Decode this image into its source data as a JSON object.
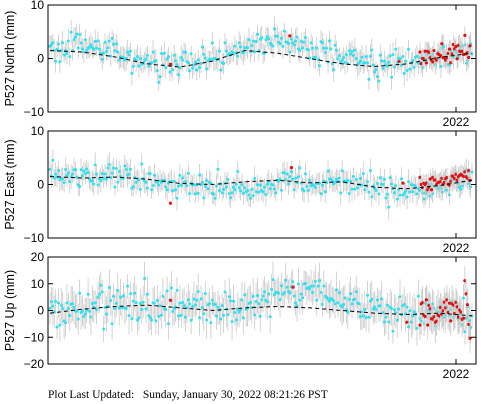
{
  "chart_data": [
    {
      "type": "scatter",
      "ylabel": "P527 North (mm)",
      "ylim": [
        -10,
        10
      ],
      "yticks": [
        "10",
        "0",
        "−10"
      ],
      "xtick_label": "2022",
      "series": [
        {
          "name": "",
          "role": "daily",
          "color": "#33e0f0",
          "trend": [
            2.0,
            2.2,
            1.5,
            -0.5,
            -1.5,
            -0.5,
            2.0,
            3.5,
            1.5,
            0.0,
            -1.0,
            -0.5,
            0.5,
            1.0
          ],
          "noise": 1.2,
          "errorbar": 1.8
        },
        {
          "name": "",
          "role": "rapid",
          "color": "#e01010",
          "trend": [
            0.0,
            0.5,
            1.0,
            1.5
          ],
          "noise": 1.0,
          "errorbar": 1.8
        },
        {
          "name": "",
          "role": "model",
          "color": "#000000",
          "trend": [
            1.5,
            1.2,
            0.3,
            -1.0,
            -1.6,
            -0.5,
            1.5,
            1.0,
            0.0,
            -1.0,
            -1.5,
            -1.0,
            0.2,
            1.0
          ]
        }
      ]
    },
    {
      "type": "scatter",
      "ylabel": "P527 East (mm)",
      "ylim": [
        -10,
        10
      ],
      "yticks": [
        "10",
        "0",
        "−10"
      ],
      "xtick_label": "2022",
      "series": [
        {
          "name": "",
          "role": "daily",
          "color": "#33e0f0",
          "trend": [
            2.0,
            1.5,
            1.8,
            1.0,
            0.0,
            -0.8,
            -0.5,
            0.3,
            0.0,
            0.5,
            -0.5,
            -1.2,
            -0.5,
            0.5
          ],
          "noise": 1.1,
          "errorbar": 1.8
        },
        {
          "name": "",
          "role": "rapid",
          "color": "#e01010",
          "trend": [
            0.0,
            0.5,
            1.0,
            1.5
          ],
          "noise": 0.9,
          "errorbar": 1.8
        },
        {
          "name": "",
          "role": "model",
          "color": "#000000",
          "trend": [
            1.5,
            1.2,
            1.4,
            1.0,
            0.2,
            0.0,
            0.5,
            0.8,
            0.3,
            0.5,
            -0.5,
            -0.8,
            -0.2,
            0.8
          ]
        }
      ]
    },
    {
      "type": "scatter",
      "ylabel": "P527 Up (mm)",
      "ylim": [
        -20,
        20
      ],
      "yticks": [
        "20",
        "10",
        "0",
        "−10",
        "−20"
      ],
      "xtick_label": "2022",
      "series": [
        {
          "name": "",
          "role": "daily",
          "color": "#33e0f0",
          "trend": [
            0.0,
            1.0,
            2.0,
            2.0,
            1.0,
            1.5,
            2.0,
            6.0,
            8.0,
            4.0,
            1.0,
            0.0,
            -2.0,
            -1.0
          ],
          "noise": 3.5,
          "errorbar": 5.5
        },
        {
          "name": "",
          "role": "rapid",
          "color": "#e01010",
          "trend": [
            -2.0,
            0.0,
            -1.0,
            -1.0
          ],
          "noise": 3.5,
          "errorbar": 5.5
        },
        {
          "name": "",
          "role": "model",
          "color": "#000000",
          "trend": [
            -1.0,
            0.5,
            1.5,
            2.0,
            1.0,
            0.0,
            1.0,
            1.5,
            1.0,
            0.0,
            -1.0,
            -1.5,
            -1.0,
            -2.0
          ]
        }
      ]
    }
  ],
  "footer": {
    "label": "Plot Last Updated:",
    "value": "Sunday, January 30, 2022 08:21:26 PST"
  }
}
